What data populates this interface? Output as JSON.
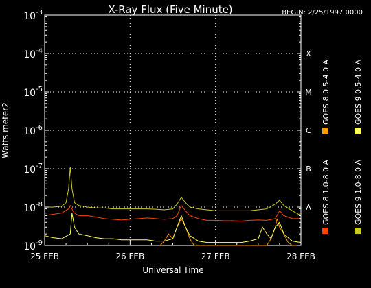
{
  "chart_data": {
    "type": "line",
    "title": "X-Ray Flux (Five Minute)",
    "begin_label": "BEGIN: 2/25/1997 0000",
    "xlabel": "Universal Time",
    "ylabel": "Watts meter2",
    "x_ticks": [
      "25 FEB",
      "26 FEB",
      "27 FEB",
      "28 FEB"
    ],
    "x_range_days": [
      25,
      28
    ],
    "y_scale": "log",
    "ylim": [
      1e-09,
      0.001
    ],
    "y_ticks": [
      {
        "base": "10",
        "exp": "-9"
      },
      {
        "base": "10",
        "exp": "-8"
      },
      {
        "base": "10",
        "exp": "-7"
      },
      {
        "base": "10",
        "exp": "-6"
      },
      {
        "base": "10",
        "exp": "-5"
      },
      {
        "base": "10",
        "exp": "-4"
      },
      {
        "base": "10",
        "exp": "-3"
      }
    ],
    "flare_classes": [
      {
        "label": "A",
        "value": 1e-08
      },
      {
        "label": "B",
        "value": 1e-07
      },
      {
        "label": "C",
        "value": 1e-06
      },
      {
        "label": "M",
        "value": 1e-05
      },
      {
        "label": "X",
        "value": 0.0001
      }
    ],
    "grid": "dotted",
    "legend_placement": "right",
    "series": [
      {
        "name": "GOES 8 1.0-8.0 A",
        "color": "#ff4400",
        "x": [
          25.0,
          25.1,
          25.2,
          25.28,
          25.3,
          25.33,
          25.35,
          25.4,
          25.5,
          25.6,
          25.7,
          25.8,
          25.9,
          26.0,
          26.1,
          26.2,
          26.3,
          26.4,
          26.5,
          26.55,
          26.6,
          26.65,
          26.7,
          26.8,
          26.9,
          27.0,
          27.1,
          27.2,
          27.3,
          27.4,
          27.5,
          27.6,
          27.7,
          27.75,
          27.8,
          27.9,
          28.0
        ],
        "y": [
          6e-09,
          6.5e-09,
          7e-09,
          9e-09,
          1.1e-08,
          8e-09,
          7e-09,
          6e-09,
          6e-09,
          5.5e-09,
          5e-09,
          4.8e-09,
          4.6e-09,
          4.8e-09,
          5e-09,
          5.2e-09,
          5e-09,
          4.8e-09,
          5e-09,
          6e-09,
          1.1e-08,
          8e-09,
          6e-09,
          5e-09,
          4.5e-09,
          4.5e-09,
          4.4e-09,
          4.4e-09,
          4.3e-09,
          4.5e-09,
          4.6e-09,
          4.5e-09,
          5e-09,
          8e-09,
          6e-09,
          5e-09,
          5e-09
        ]
      },
      {
        "name": "GOES 8 0.5-4.0 A",
        "color": "#ff9900",
        "x": [
          26.35,
          26.4,
          26.45,
          26.5,
          26.55,
          26.6,
          26.65,
          26.7,
          26.75,
          27.6,
          27.65,
          27.7,
          27.72,
          27.75,
          27.8,
          27.85,
          27.9,
          27.95
        ],
        "y": [
          1e-09,
          1.3e-09,
          2e-09,
          1.5e-09,
          3e-09,
          5e-09,
          3e-09,
          1.5e-09,
          1e-09,
          1e-09,
          1.5e-09,
          3e-09,
          5e-09,
          3e-09,
          2e-09,
          1.2e-09,
          1e-09,
          1e-09
        ]
      },
      {
        "name": "GOES 9 1.0-8.0 A",
        "color": "#cccc22",
        "x": [
          25.0,
          25.1,
          25.2,
          25.25,
          25.28,
          25.3,
          25.32,
          25.35,
          25.4,
          25.5,
          25.6,
          25.7,
          25.8,
          25.9,
          26.0,
          26.1,
          26.2,
          26.3,
          26.4,
          26.5,
          26.55,
          26.6,
          26.65,
          26.7,
          26.8,
          26.9,
          27.0,
          27.1,
          27.2,
          27.3,
          27.4,
          27.5,
          27.6,
          27.7,
          27.75,
          27.8,
          27.9,
          28.0
        ],
        "y": [
          1e-08,
          1e-08,
          1.05e-08,
          1.3e-08,
          3e-08,
          1.1e-07,
          3e-08,
          1.3e-08,
          1.1e-08,
          1e-08,
          9.5e-09,
          9.5e-09,
          9e-09,
          9e-09,
          9e-09,
          9e-09,
          9e-09,
          8.8e-09,
          8.5e-09,
          9e-09,
          1.2e-08,
          1.8e-08,
          1.3e-08,
          1e-08,
          9e-09,
          8.5e-09,
          8e-09,
          8e-09,
          8e-09,
          8e-09,
          8e-09,
          8.5e-09,
          9e-09,
          1.2e-08,
          1.5e-08,
          1.1e-08,
          8e-09,
          6e-09
        ]
      },
      {
        "name": "GOES 9 0.5-4.0 A",
        "color": "#ffff66",
        "x": [
          25.0,
          25.1,
          25.2,
          25.3,
          25.32,
          25.35,
          25.4,
          25.5,
          25.6,
          25.7,
          25.8,
          25.9,
          26.0,
          26.1,
          26.2,
          26.3,
          26.4,
          26.5,
          26.55,
          26.6,
          26.65,
          26.7,
          26.8,
          26.9,
          27.0,
          27.1,
          27.2,
          27.3,
          27.4,
          27.5,
          27.55,
          27.6,
          27.65,
          27.7,
          27.75,
          27.8,
          27.9,
          28.0
        ],
        "y": [
          1.8e-09,
          1.6e-09,
          1.5e-09,
          2e-09,
          7e-09,
          3e-09,
          2e-09,
          1.8e-09,
          1.6e-09,
          1.5e-09,
          1.5e-09,
          1.4e-09,
          1.4e-09,
          1.4e-09,
          1.4e-09,
          1.3e-09,
          1.3e-09,
          1.5e-09,
          3e-09,
          6e-09,
          3e-09,
          1.8e-09,
          1.3e-09,
          1.2e-09,
          1.2e-09,
          1.2e-09,
          1.2e-09,
          1.2e-09,
          1.3e-09,
          1.5e-09,
          3e-09,
          2e-09,
          1.5e-09,
          3e-09,
          4e-09,
          2e-09,
          1.3e-09,
          1.2e-09
        ]
      }
    ]
  }
}
